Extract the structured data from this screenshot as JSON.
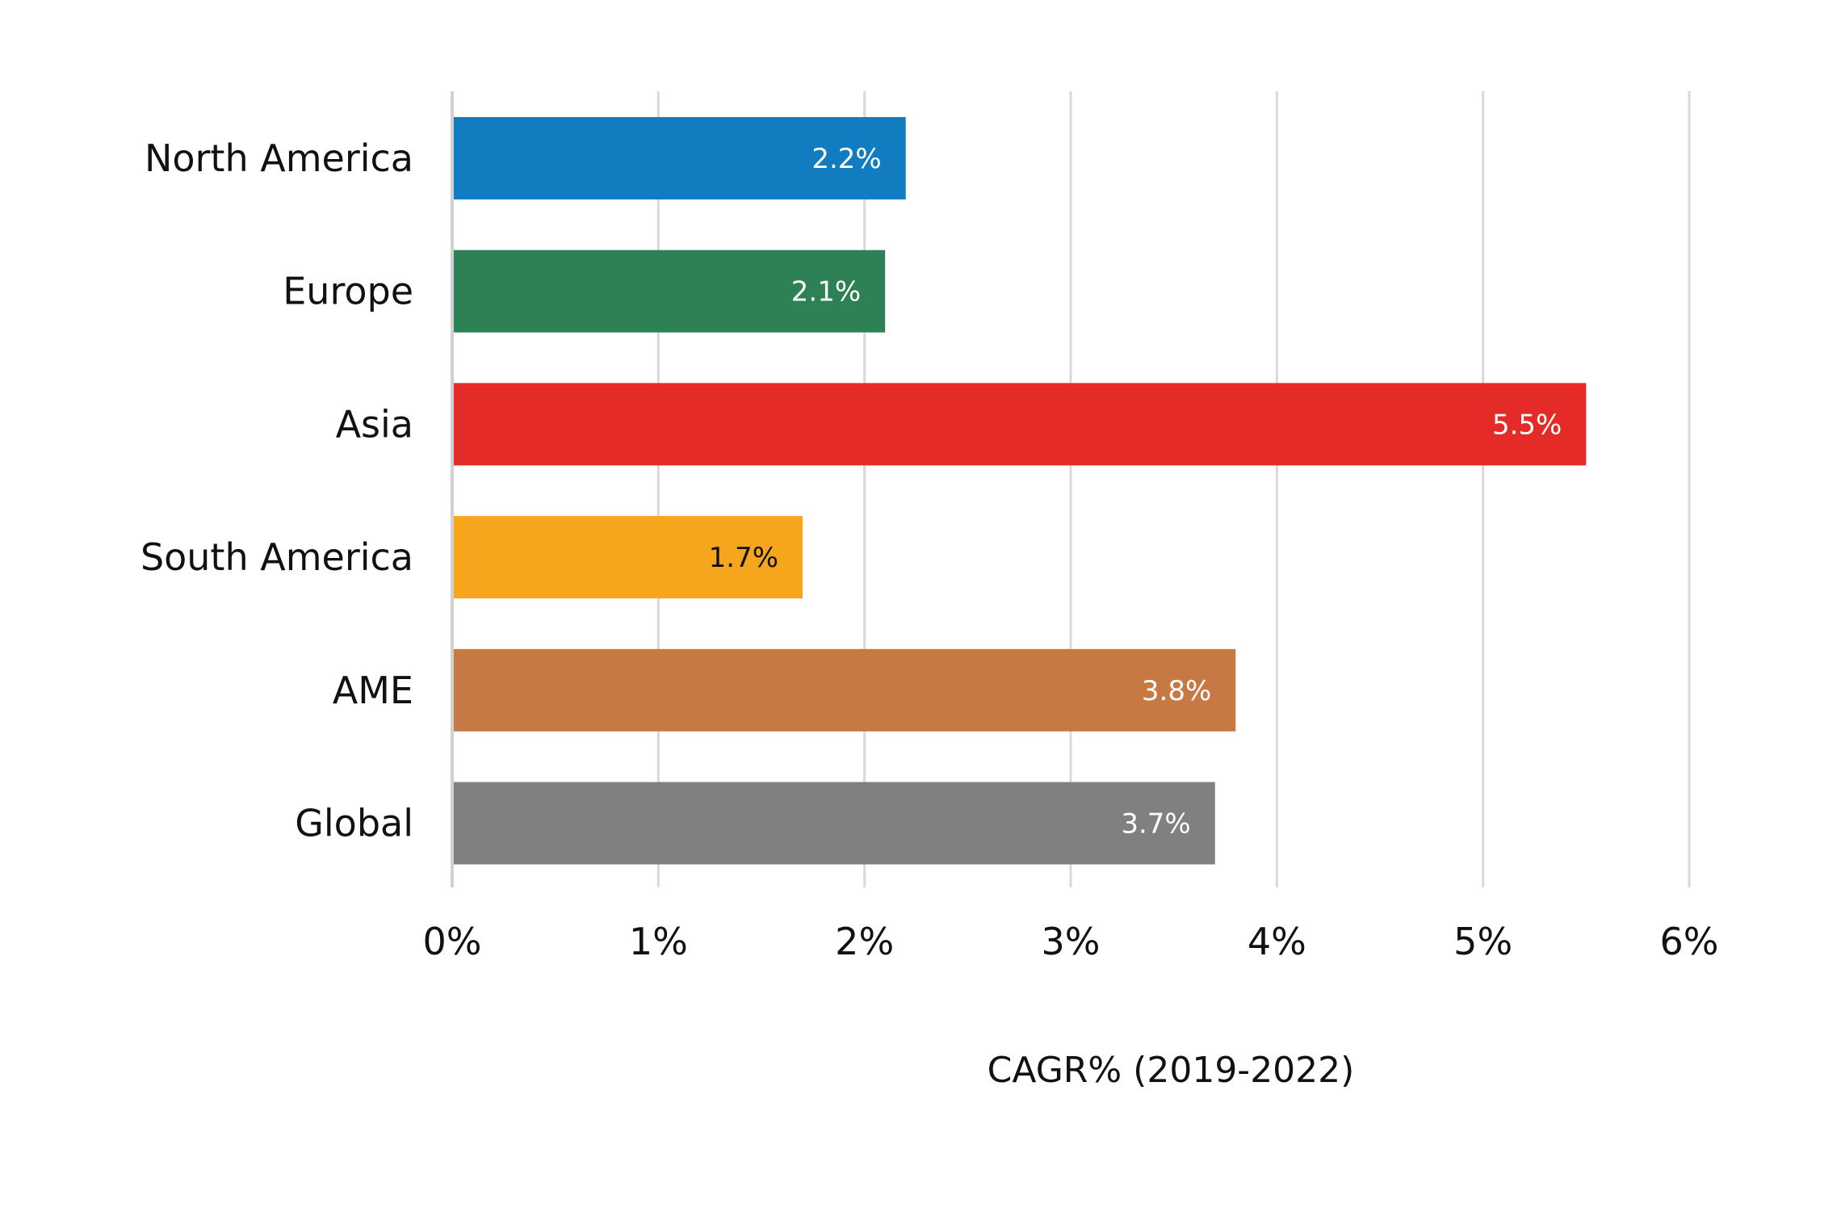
{
  "chart_data": {
    "type": "bar",
    "orientation": "horizontal",
    "title": "",
    "xlabel": "CAGR% (2019-2022)",
    "ylabel": "",
    "categories": [
      "North America",
      "Europe",
      "Asia",
      "South America",
      "AME",
      "Global"
    ],
    "values": [
      2.2,
      2.1,
      5.5,
      1.7,
      3.8,
      3.7
    ],
    "data_labels": [
      "2.2%",
      "2.1%",
      "5.5%",
      "1.7%",
      "3.8%",
      "3.7%"
    ],
    "colors": [
      "#127CC1",
      "#2E8155",
      "#E52B27",
      "#F5A61D",
      "#C77944",
      "#808080"
    ],
    "label_colors": [
      "#ffffff",
      "#ffffff",
      "#ffffff",
      "#111111",
      "#ffffff",
      "#ffffff"
    ],
    "xlim": [
      0,
      6
    ],
    "x_ticks": [
      0,
      1,
      2,
      3,
      4,
      5,
      6
    ],
    "x_tick_labels": [
      "0%",
      "1%",
      "2%",
      "3%",
      "4%",
      "5%",
      "6%"
    ],
    "grid": true,
    "legend": "none"
  }
}
